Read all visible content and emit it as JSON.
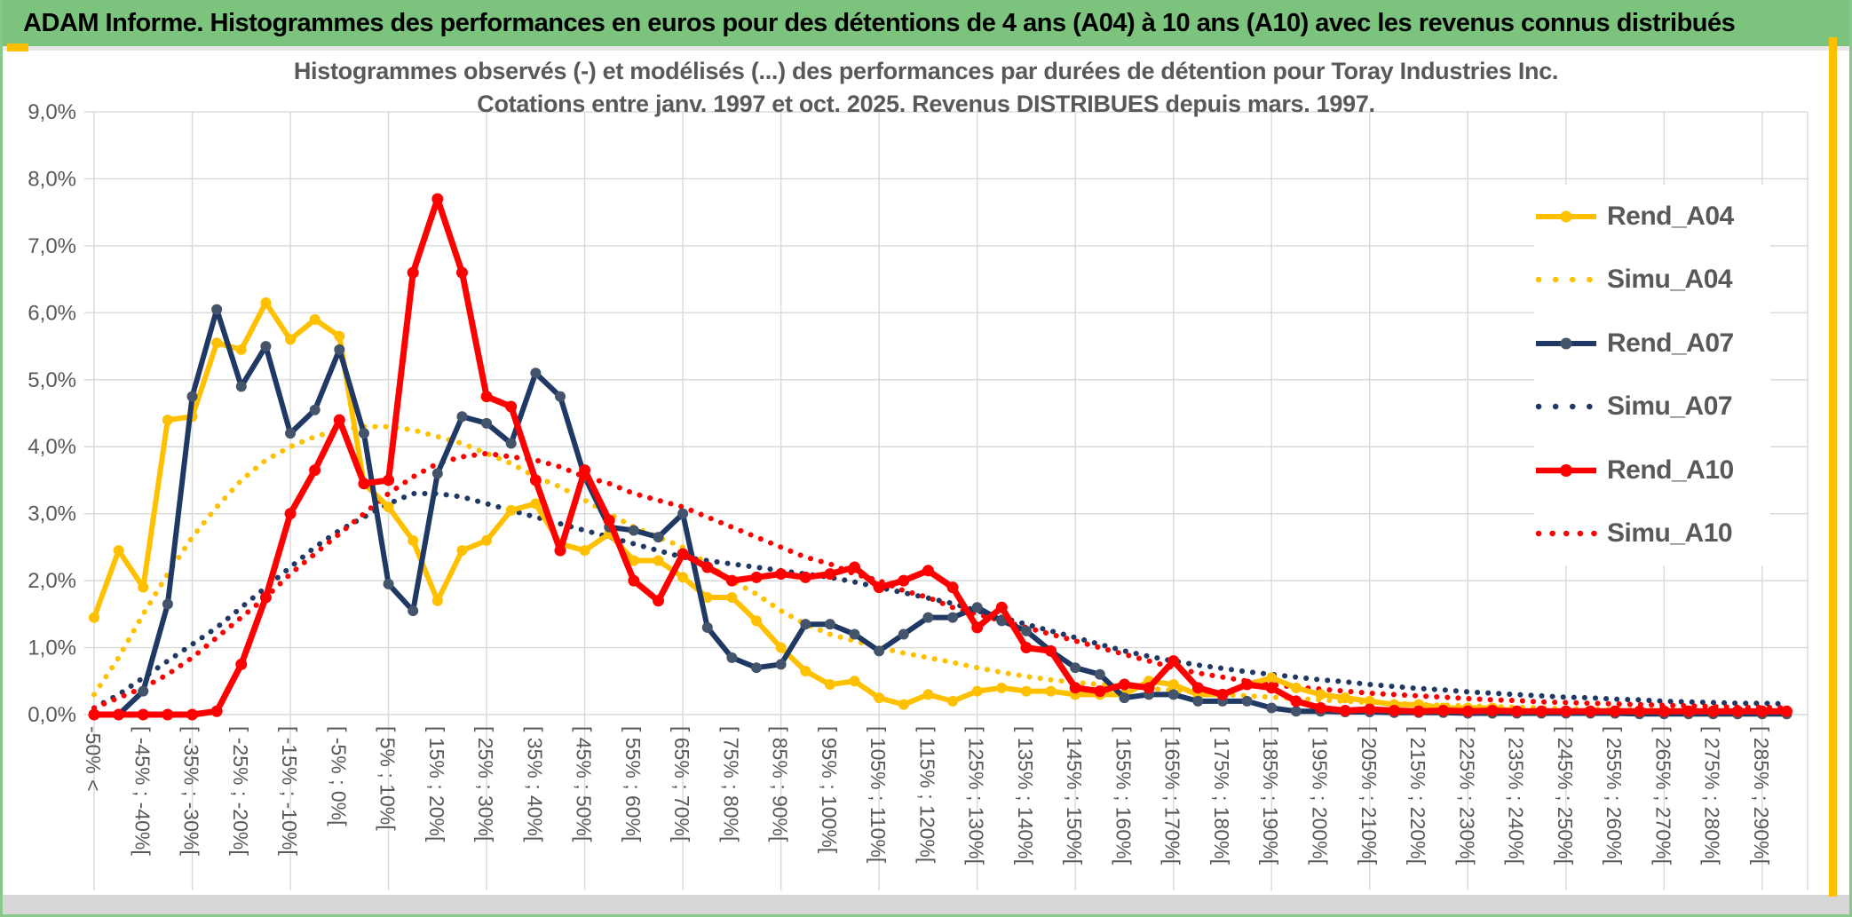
{
  "window": {
    "header_title": "ADAM Informe. Histogrammes des performances en euros pour des détentions de 4 ans (A04) à 10 ans (A10) avec les revenus connus distribués"
  },
  "chart_data": {
    "type": "line",
    "title_lines": [
      "Histogrammes observés (-) et modélisés (...) des performances par durées de détention pour Toray Industries Inc.",
      "Cotations entre janv. 1997 et oct. 2025. Revenus DISTRIBUES depuis mars. 1997."
    ],
    "ylim": [
      0,
      9
    ],
    "ytick_labels": [
      "9,0%",
      "8,0%",
      "7,0%",
      "6,0%",
      "5,0%",
      "4,0%",
      "3,0%",
      "2,0%",
      "1,0%",
      "0,0%"
    ],
    "grid": true,
    "legend_position": "right",
    "n_bins": 70,
    "x_labels_every_other_bin": true,
    "x_labels": [
      "-50% <",
      "[ -45% ; -40%[",
      "[ -35% ; -30%[",
      "[ -25% ; -20%[",
      "[ -15% ; -10%[",
      "[ -5% ; 0%[",
      "[ 5% ; 10%[",
      "[ 15% ; 20%[",
      "[ 25% ; 30%[",
      "[ 35% ; 40%[",
      "[ 45% ; 50%[",
      "[ 55% ; 60%[",
      "[ 65% ; 70%[",
      "[ 75% ; 80%[",
      "[ 85% ; 90%[",
      "[ 95% ; 100%[",
      "[ 105% ; 110%[",
      "[ 115% ; 120%[",
      "[ 125% ; 130%[",
      "[ 135% ; 140%[",
      "[ 145% ; 150%[",
      "[ 155% ; 160%[",
      "[ 165% ; 170%[",
      "[ 175% ; 180%[",
      "[ 185% ; 190%[",
      "[ 195% ; 200%[",
      "[ 205% ; 210%[",
      "[ 215% ; 220%[",
      "[ 225% ; 230%[",
      "[ 235% ; 240%[",
      "[ 245% ; 250%[",
      "[ 255% ; 260%[",
      "[ 265% ; 270%[",
      "[ 275% ; 280%[",
      "[ 285% ; 290%["
    ],
    "series": [
      {
        "name": "Rend_A04",
        "style": "solid",
        "marker": true,
        "color": "#FFC000",
        "marker_color": "#FFC000",
        "values": [
          1.45,
          2.45,
          1.9,
          4.4,
          4.45,
          5.55,
          5.45,
          6.15,
          5.6,
          5.9,
          5.65,
          3.45,
          3.1,
          2.6,
          1.7,
          2.45,
          2.6,
          3.05,
          3.15,
          2.55,
          2.45,
          2.7,
          2.3,
          2.3,
          2.05,
          1.75,
          1.75,
          1.4,
          1.0,
          0.65,
          0.45,
          0.5,
          0.25,
          0.15,
          0.3,
          0.2,
          0.35,
          0.4,
          0.35,
          0.35,
          0.3,
          0.3,
          0.3,
          0.5,
          0.45,
          0.3,
          0.3,
          0.45,
          0.55,
          0.4,
          0.3,
          0.25,
          0.2,
          0.15,
          0.15,
          0.1,
          0.1,
          0.1,
          0.05,
          0.05,
          0.05,
          0.03,
          0.02,
          0.02,
          0.02,
          0.01,
          0.01,
          0.01,
          0.01,
          0.01
        ]
      },
      {
        "name": "Simu_A04",
        "style": "dotted",
        "marker": false,
        "color": "#FFC000",
        "values": [
          0.3,
          0.85,
          1.5,
          2.1,
          2.65,
          3.1,
          3.5,
          3.8,
          4.0,
          4.15,
          4.25,
          4.3,
          4.3,
          4.25,
          4.15,
          4.05,
          3.9,
          3.75,
          3.55,
          3.4,
          3.2,
          3.0,
          2.8,
          2.65,
          2.5,
          2.25,
          2.0,
          1.8,
          1.55,
          1.35,
          1.2,
          1.1,
          1.0,
          0.92,
          0.85,
          0.78,
          0.7,
          0.63,
          0.57,
          0.52,
          0.48,
          0.45,
          0.42,
          0.39,
          0.36,
          0.33,
          0.3,
          0.28,
          0.26,
          0.24,
          0.22,
          0.2,
          0.18,
          0.17,
          0.15,
          0.14,
          0.13,
          0.12,
          0.11,
          0.1,
          0.09,
          0.08,
          0.08,
          0.07,
          0.07,
          0.06,
          0.06,
          0.05,
          0.05,
          0.05
        ]
      },
      {
        "name": "Rend_A07",
        "style": "solid",
        "marker": true,
        "color": "#1F3864",
        "marker_color": "#44546A",
        "values": [
          0,
          0,
          0.35,
          1.65,
          4.75,
          6.05,
          4.9,
          5.5,
          4.2,
          4.55,
          5.45,
          4.2,
          1.95,
          1.55,
          3.6,
          4.45,
          4.35,
          4.05,
          5.1,
          4.75,
          3.55,
          2.8,
          2.75,
          2.65,
          3.0,
          1.3,
          0.85,
          0.7,
          0.75,
          1.35,
          1.35,
          1.2,
          0.95,
          1.2,
          1.45,
          1.45,
          1.6,
          1.4,
          1.25,
          0.95,
          0.7,
          0.6,
          0.25,
          0.3,
          0.3,
          0.2,
          0.2,
          0.2,
          0.1,
          0.05,
          0.05,
          0.04,
          0.04,
          0.03,
          0.03,
          0.03,
          0.02,
          0.02,
          0.02,
          0.02,
          0.02,
          0.02,
          0.02,
          0.01,
          0.01,
          0.01,
          0.01,
          0.01,
          0.01,
          0.01
        ]
      },
      {
        "name": "Simu_A07",
        "style": "dotted",
        "marker": false,
        "color": "#1F3864",
        "values": [
          0.1,
          0.3,
          0.55,
          0.8,
          1.05,
          1.3,
          1.6,
          1.9,
          2.2,
          2.5,
          2.75,
          2.95,
          3.15,
          3.3,
          3.3,
          3.25,
          3.15,
          3.05,
          2.95,
          2.85,
          2.75,
          2.65,
          2.55,
          2.45,
          2.35,
          2.3,
          2.25,
          2.2,
          2.15,
          2.1,
          2.05,
          1.98,
          1.9,
          1.82,
          1.74,
          1.66,
          1.55,
          1.45,
          1.35,
          1.25,
          1.15,
          1.05,
          0.95,
          0.87,
          0.8,
          0.74,
          0.69,
          0.64,
          0.6,
          0.56,
          0.52,
          0.49,
          0.45,
          0.42,
          0.39,
          0.37,
          0.34,
          0.32,
          0.3,
          0.28,
          0.26,
          0.25,
          0.23,
          0.22,
          0.2,
          0.19,
          0.18,
          0.17,
          0.17,
          0.16
        ]
      },
      {
        "name": "Rend_A10",
        "style": "solid",
        "marker": true,
        "color": "#FF0000",
        "marker_color": "#FF0000",
        "values": [
          0,
          0,
          0,
          0,
          0,
          0.05,
          0.75,
          1.75,
          3.0,
          3.65,
          4.4,
          3.45,
          3.5,
          6.6,
          7.7,
          6.6,
          4.75,
          4.6,
          3.5,
          2.45,
          3.65,
          2.9,
          2.0,
          1.7,
          2.4,
          2.2,
          2.0,
          2.05,
          2.1,
          2.05,
          2.1,
          2.2,
          1.9,
          2.0,
          2.15,
          1.9,
          1.3,
          1.6,
          1.0,
          0.95,
          0.4,
          0.35,
          0.45,
          0.4,
          0.8,
          0.4,
          0.3,
          0.45,
          0.4,
          0.2,
          0.1,
          0.06,
          0.08,
          0.06,
          0.05,
          0.06,
          0.05,
          0.06,
          0.05,
          0.05,
          0.05,
          0.05,
          0.05,
          0.05,
          0.05,
          0.05,
          0.05,
          0.05,
          0.05,
          0.05
        ]
      },
      {
        "name": "Simu_A10",
        "style": "dotted",
        "marker": false,
        "color": "#FF0000",
        "values": [
          0.1,
          0.25,
          0.4,
          0.6,
          0.85,
          1.15,
          1.45,
          1.75,
          2.1,
          2.4,
          2.7,
          3.0,
          3.3,
          3.55,
          3.75,
          3.85,
          3.9,
          3.85,
          3.8,
          3.7,
          3.55,
          3.45,
          3.3,
          3.2,
          3.1,
          2.95,
          2.8,
          2.65,
          2.5,
          2.35,
          2.25,
          2.1,
          2.0,
          1.85,
          1.75,
          1.6,
          1.5,
          1.4,
          1.3,
          1.2,
          1.1,
          1.0,
          0.9,
          0.8,
          0.7,
          0.62,
          0.56,
          0.5,
          0.45,
          0.41,
          0.38,
          0.35,
          0.32,
          0.3,
          0.28,
          0.26,
          0.24,
          0.22,
          0.21,
          0.19,
          0.18,
          0.17,
          0.16,
          0.15,
          0.14,
          0.13,
          0.12,
          0.11,
          0.11,
          0.1
        ]
      }
    ],
    "colors": {
      "gold": "#FFC000",
      "navy": "#1F3864",
      "navy_marker": "#44546A",
      "red": "#FF0000",
      "header_green": "#7CC47E",
      "gridline": "#D9D9D9",
      "axis_text": "#595959"
    }
  }
}
